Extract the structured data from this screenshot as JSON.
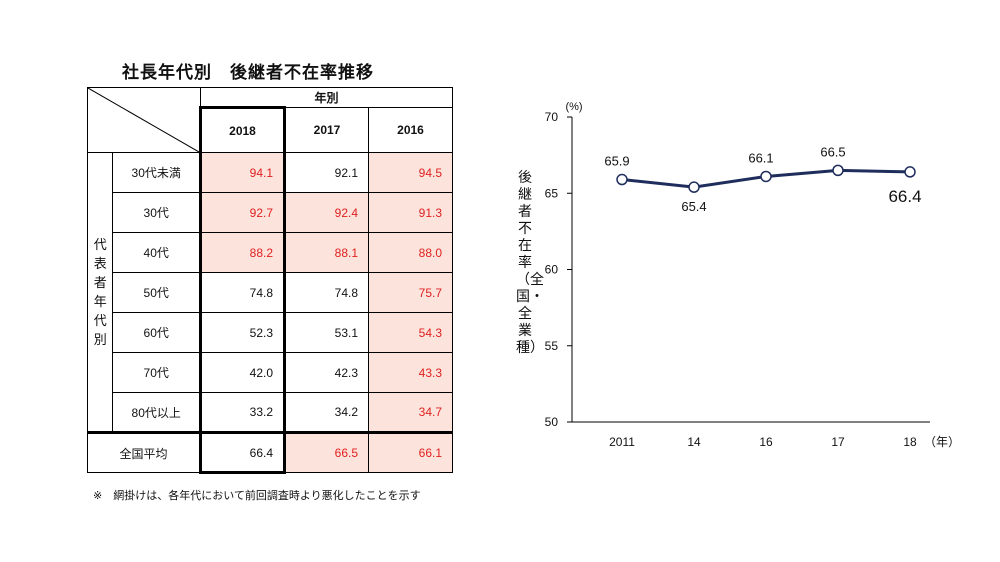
{
  "table": {
    "title": "社長年代別　後継者不在率推移",
    "group_header": "年別",
    "years": [
      "2018",
      "2017",
      "2016"
    ],
    "row_group_label": [
      "代",
      "表",
      "者",
      "年",
      "代",
      "別"
    ],
    "rows": [
      {
        "age": "30代未満",
        "values": [
          "94.1",
          "92.1",
          "94.5"
        ],
        "hl": [
          true,
          false,
          true
        ]
      },
      {
        "age": "30代",
        "values": [
          "92.7",
          "92.4",
          "91.3"
        ],
        "hl": [
          true,
          true,
          true
        ]
      },
      {
        "age": "40代",
        "values": [
          "88.2",
          "88.1",
          "88.0"
        ],
        "hl": [
          true,
          true,
          true
        ]
      },
      {
        "age": "50代",
        "values": [
          "74.8",
          "74.8",
          "75.7"
        ],
        "hl": [
          false,
          false,
          true
        ]
      },
      {
        "age": "60代",
        "values": [
          "52.3",
          "53.1",
          "54.3"
        ],
        "hl": [
          false,
          false,
          true
        ]
      },
      {
        "age": "70代",
        "values": [
          "42.0",
          "42.3",
          "43.3"
        ],
        "hl": [
          false,
          false,
          true
        ]
      },
      {
        "age": "80代以上",
        "values": [
          "33.2",
          "34.2",
          "34.7"
        ],
        "hl": [
          false,
          false,
          true
        ]
      }
    ],
    "average": {
      "label": "全国平均",
      "values": [
        "66.4",
        "66.5",
        "66.1"
      ],
      "hl": [
        false,
        true,
        true
      ]
    },
    "note": "※　網掛けは、各年代において前回調査時より悪化したことを示す",
    "highlight_color": "#fce4dc",
    "highlight_text_color": "#e02020"
  },
  "chart_data": {
    "type": "line",
    "categories": [
      "2011",
      "14",
      "16",
      "17",
      "18"
    ],
    "values": [
      65.9,
      65.4,
      66.1,
      66.5,
      66.4
    ],
    "value_labels": [
      "65.9",
      "65.4",
      "66.1",
      "66.5",
      "66.4"
    ],
    "ylabel": "後継者不在率（全国・全業種）",
    "y_unit": "(%)",
    "x_unit": "（年）",
    "ylim": [
      50,
      70
    ],
    "yticks": [
      50,
      55,
      60,
      65,
      70
    ],
    "grid": false,
    "line_color": "#1f2d5c"
  }
}
